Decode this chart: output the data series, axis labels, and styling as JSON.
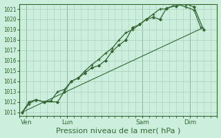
{
  "bg_color": "#cceedd",
  "grid_color": "#aaccbb",
  "line_color": "#336633",
  "xlabel": "Pression niveau de la mer( hPa )",
  "xlabel_fontsize": 8,
  "ytick_labels": [
    "1011",
    "1012",
    "1013",
    "1014",
    "1015",
    "1016",
    "1017",
    "1018",
    "1019",
    "1020",
    "1021"
  ],
  "ytick_vals": [
    1011,
    1012,
    1013,
    1014,
    1015,
    1016,
    1017,
    1018,
    1019,
    1020,
    1021
  ],
  "ylim": [
    1010.6,
    1021.5
  ],
  "xlim": [
    0,
    14.5
  ],
  "xtick_labels": [
    "Ven",
    "Lun",
    "Sam",
    "Dim"
  ],
  "xtick_positions": [
    0.5,
    3.5,
    9.0,
    12.5
  ],
  "vline_positions": [
    0.5,
    3.5,
    9.0,
    12.5
  ],
  "series1_x": [
    0.2,
    0.7,
    1.2,
    1.8,
    2.3,
    2.8,
    3.3,
    3.8,
    4.3,
    4.8,
    5.3,
    5.8,
    6.3,
    6.8,
    7.3,
    7.8,
    8.3,
    8.8,
    9.3,
    9.8,
    10.3,
    10.8,
    11.5,
    12.2,
    12.8,
    13.3
  ],
  "series1_y": [
    1011.0,
    1011.8,
    1012.2,
    1012.0,
    1012.1,
    1013.0,
    1013.2,
    1014.0,
    1014.3,
    1015.0,
    1015.6,
    1016.1,
    1016.7,
    1017.2,
    1018.0,
    1018.7,
    1019.0,
    1019.5,
    1020.0,
    1020.5,
    1021.0,
    1021.0,
    1021.5,
    1021.2,
    1020.9,
    1019.2
  ],
  "series2_x": [
    0.2,
    0.7,
    1.2,
    1.8,
    2.8,
    3.3,
    3.8,
    4.3,
    4.8,
    5.3,
    5.8,
    6.3,
    6.8,
    7.3,
    7.8,
    8.3,
    8.8,
    9.3,
    9.8,
    10.3,
    10.8,
    11.5,
    12.2,
    12.8,
    13.5
  ],
  "series2_y": [
    1011.0,
    1012.0,
    1012.2,
    1012.0,
    1012.0,
    1013.0,
    1014.0,
    1014.3,
    1014.8,
    1015.3,
    1015.5,
    1016.0,
    1016.9,
    1017.5,
    1018.0,
    1019.2,
    1019.5,
    1020.0,
    1020.2,
    1020.0,
    1021.1,
    1021.3,
    1021.5,
    1021.2,
    1019.0
  ],
  "series3_x": [
    0.2,
    13.5
  ],
  "series3_y": [
    1011.0,
    1019.2
  ]
}
